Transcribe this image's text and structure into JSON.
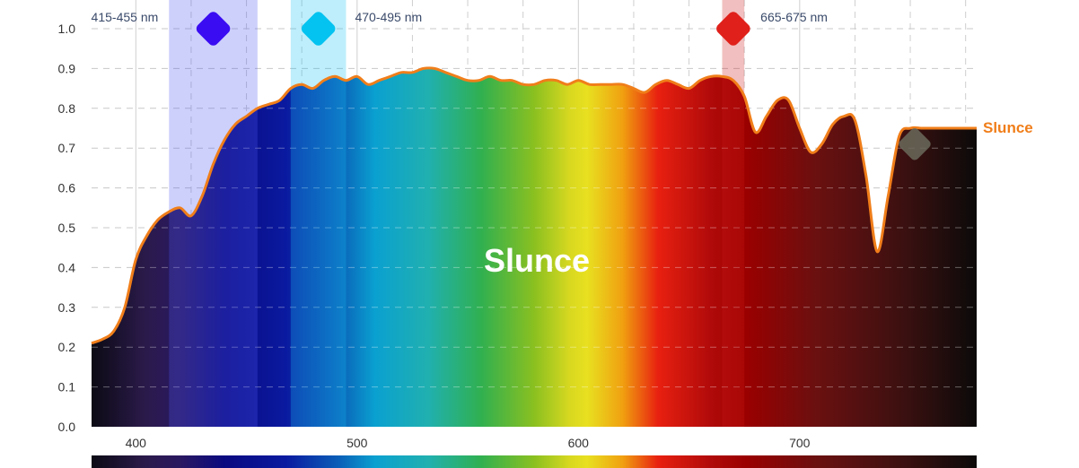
{
  "chart_data": {
    "type": "area",
    "title": "",
    "xlabel": "",
    "ylabel": "",
    "xlim": [
      380,
      780
    ],
    "ylim": [
      0,
      1.0
    ],
    "x_ticks": [
      "400",
      "500",
      "600",
      "700"
    ],
    "y_ticks": [
      "0.0",
      "0.1",
      "0.2",
      "0.3",
      "0.4",
      "0.5",
      "0.6",
      "0.7",
      "0.8",
      "0.9",
      "1.0"
    ],
    "grid": true,
    "series": [
      {
        "name": "Slunce",
        "color": "#f07e1a",
        "x": [
          380,
          385,
          390,
          395,
          400,
          405,
          410,
          415,
          420,
          425,
          430,
          435,
          440,
          445,
          450,
          455,
          460,
          465,
          470,
          475,
          480,
          485,
          490,
          495,
          500,
          505,
          510,
          515,
          520,
          525,
          530,
          535,
          540,
          545,
          550,
          555,
          560,
          565,
          570,
          575,
          580,
          585,
          590,
          595,
          600,
          605,
          610,
          615,
          620,
          625,
          630,
          635,
          640,
          645,
          650,
          655,
          660,
          665,
          670,
          675,
          680,
          685,
          690,
          695,
          700,
          705,
          710,
          715,
          720,
          725,
          730,
          735,
          740,
          745,
          750,
          755,
          760,
          765,
          770,
          775,
          780
        ],
        "y": [
          0.21,
          0.22,
          0.24,
          0.3,
          0.42,
          0.48,
          0.52,
          0.54,
          0.55,
          0.53,
          0.58,
          0.66,
          0.72,
          0.76,
          0.78,
          0.8,
          0.81,
          0.82,
          0.85,
          0.86,
          0.85,
          0.87,
          0.88,
          0.87,
          0.88,
          0.86,
          0.87,
          0.88,
          0.89,
          0.89,
          0.9,
          0.9,
          0.89,
          0.88,
          0.87,
          0.87,
          0.88,
          0.87,
          0.87,
          0.86,
          0.86,
          0.87,
          0.87,
          0.86,
          0.87,
          0.86,
          0.86,
          0.86,
          0.86,
          0.85,
          0.84,
          0.86,
          0.87,
          0.86,
          0.85,
          0.87,
          0.88,
          0.88,
          0.87,
          0.83,
          0.74,
          0.78,
          0.82,
          0.82,
          0.75,
          0.69,
          0.71,
          0.76,
          0.78,
          0.77,
          0.63,
          0.44,
          0.58,
          0.73,
          0.75,
          0.75,
          0.75,
          0.75,
          0.75,
          0.75,
          0.75
        ]
      }
    ],
    "bands": [
      {
        "label": "415-455 nm",
        "from": 415,
        "to": 455,
        "color": "#4a56f0",
        "marker_color": "#3a0cf2"
      },
      {
        "label": "470-495 nm",
        "from": 470,
        "to": 495,
        "color": "#14c3f0",
        "marker_color": "#05c3f0"
      },
      {
        "label": "665-675 nm",
        "from": 665,
        "to": 675,
        "color": "#cc1a1a",
        "marker_color": "#e0201a"
      }
    ],
    "center_label": "Slunce",
    "end_marker_color": "#6a6a5a"
  }
}
